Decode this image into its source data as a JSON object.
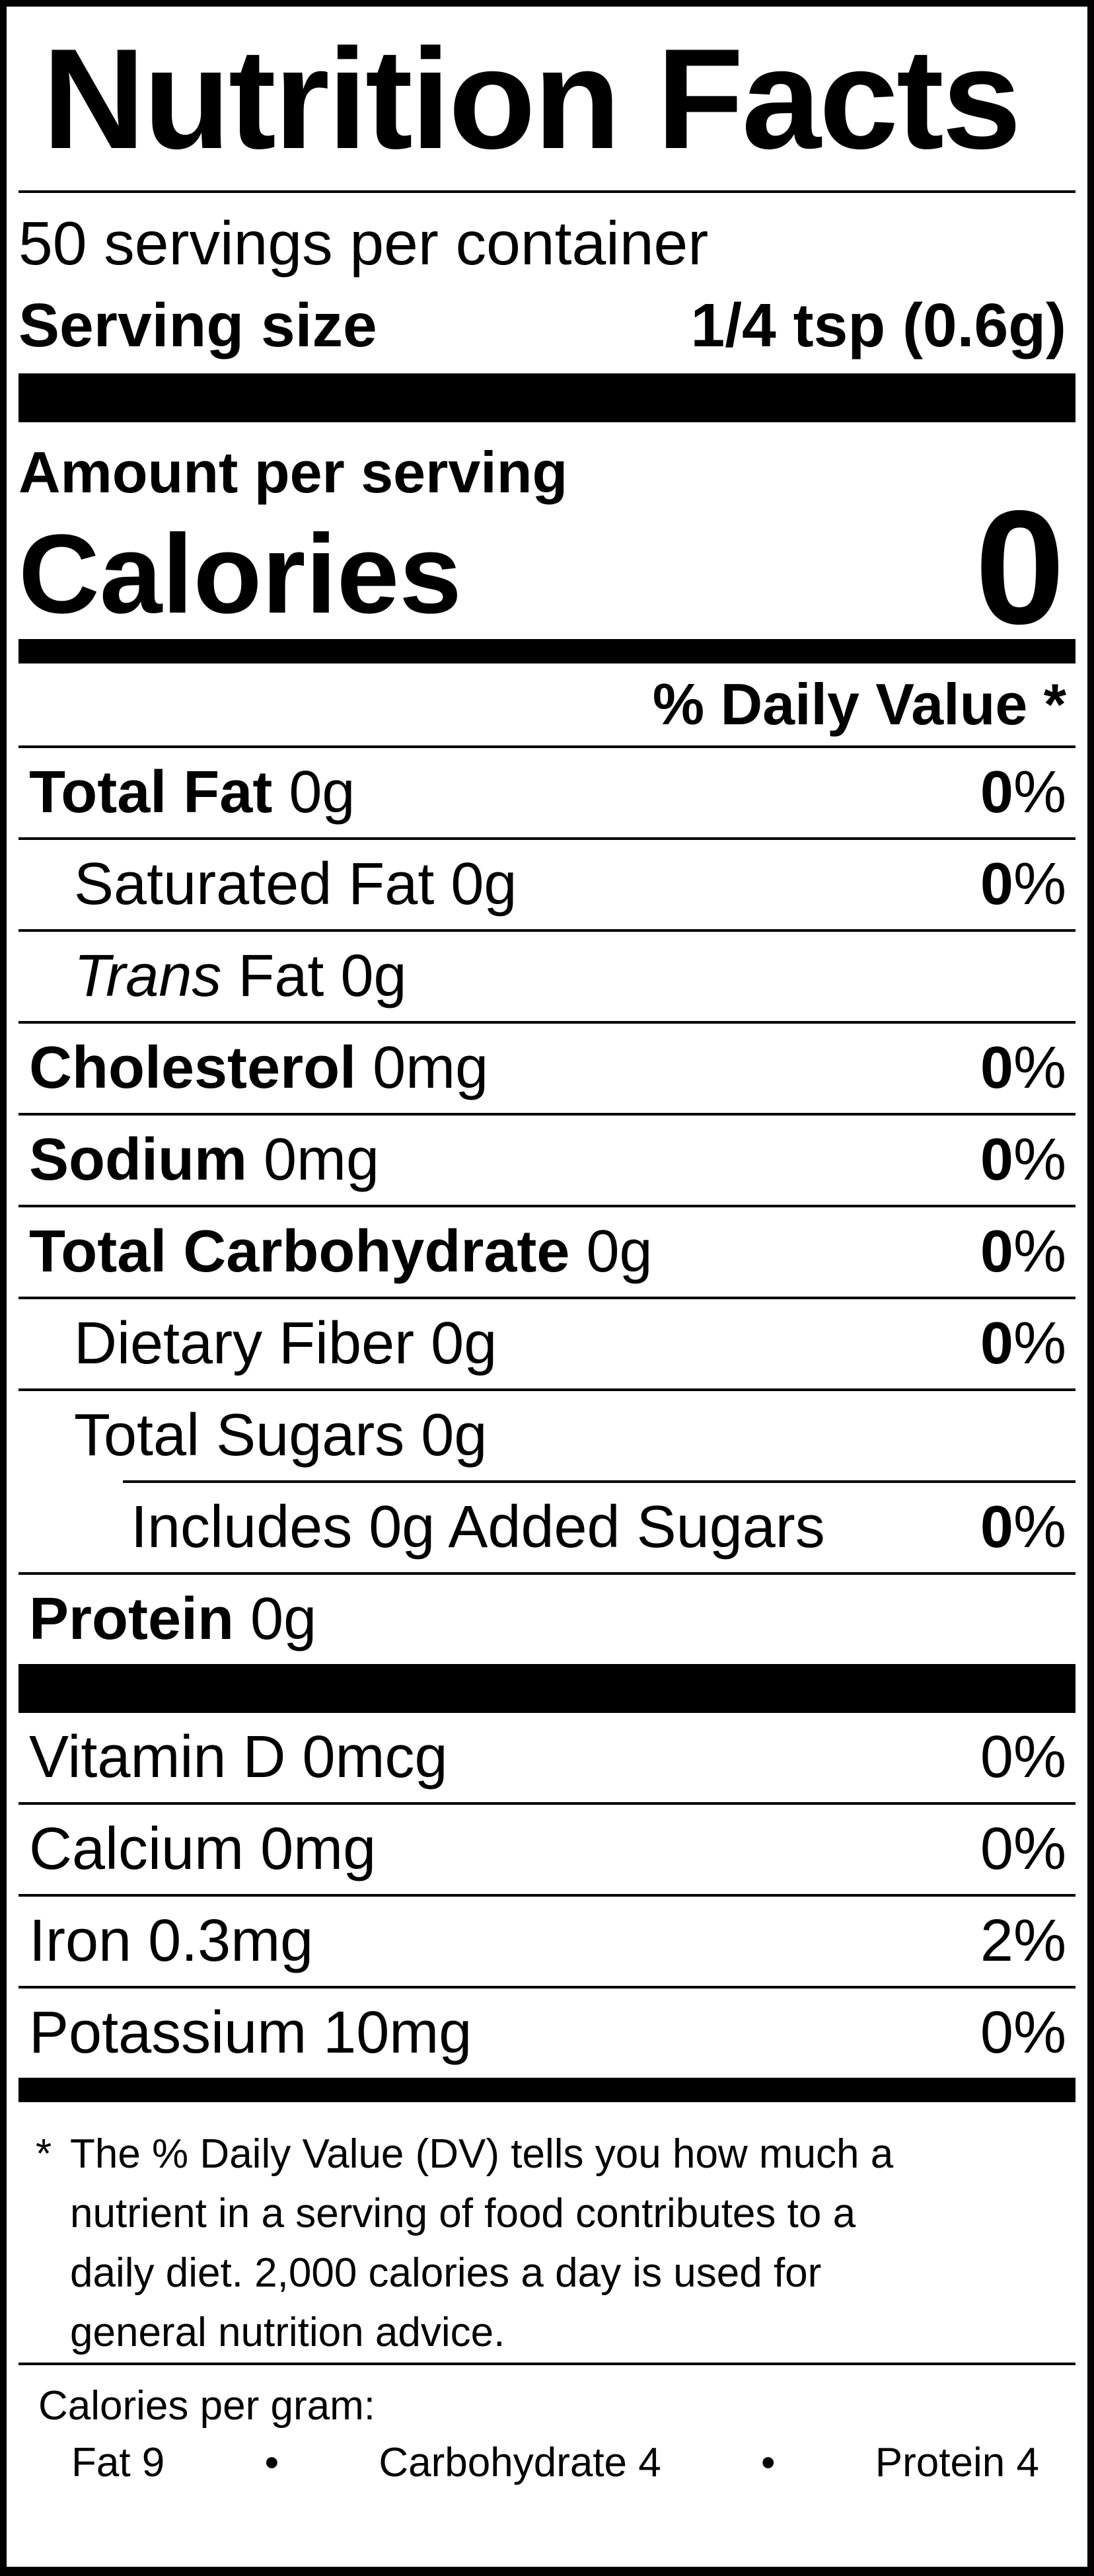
{
  "header": {
    "title": "Nutrition Facts",
    "servings_per_container": "50 servings per container",
    "serving_size_label": "Serving size",
    "serving_size_value": "1/4 tsp (0.6g)"
  },
  "calories_section": {
    "amount_per_serving": "Amount per serving",
    "calories_label": "Calories",
    "calories_value": "0"
  },
  "daily_value_header": "% Daily Value *",
  "percent_sign": "%",
  "nutrients": [
    {
      "name": "Total Fat",
      "amount": "0g",
      "dv": "0",
      "bold": true,
      "indent": 0,
      "rule": "none"
    },
    {
      "name": "Saturated Fat",
      "amount": "0g",
      "dv": "0",
      "bold": false,
      "indent": 1,
      "rule": "full"
    },
    {
      "name": "Fat",
      "italic_prefix": "Trans",
      "amount": "0g",
      "dv": null,
      "bold": false,
      "indent": 1,
      "rule": "full"
    },
    {
      "name": "Cholesterol",
      "amount": "0mg",
      "dv": "0",
      "bold": true,
      "indent": 0,
      "rule": "full"
    },
    {
      "name": "Sodium",
      "amount": "0mg",
      "dv": "0",
      "bold": true,
      "indent": 0,
      "rule": "full"
    },
    {
      "name": "Total Carbohydrate",
      "amount": "0g",
      "dv": "0",
      "bold": true,
      "indent": 0,
      "rule": "full"
    },
    {
      "name": "Dietary Fiber",
      "amount": "0g",
      "dv": "0",
      "bold": false,
      "indent": 1,
      "rule": "full"
    },
    {
      "name": "Total Sugars",
      "amount": "0g",
      "dv": null,
      "bold": false,
      "indent": 1,
      "rule": "full"
    },
    {
      "name": "Includes 0g Added Sugars",
      "amount": null,
      "dv": "0",
      "bold": false,
      "indent": 2,
      "rule": "indent"
    },
    {
      "name": "Protein",
      "amount": "0g",
      "dv": null,
      "bold": true,
      "indent": 0,
      "rule": "full"
    }
  ],
  "vitamins": [
    {
      "name": "Vitamin D",
      "amount": "0mcg",
      "dv": "0",
      "rule": "none"
    },
    {
      "name": "Calcium",
      "amount": "0mg",
      "dv": "0",
      "rule": "full"
    },
    {
      "name": "Iron",
      "amount": "0.3mg",
      "dv": "2",
      "rule": "full"
    },
    {
      "name": "Potassium",
      "amount": "10mg",
      "dv": "0",
      "rule": "full"
    }
  ],
  "footnote": {
    "marker": "*",
    "text": "The % Daily Value (DV) tells you how much a\nnutrient in a serving of food contributes to a\ndaily diet. 2,000 calories a day is used for\ngeneral nutrition advice."
  },
  "calories_per_gram": {
    "label": "Calories per gram:",
    "items": [
      "Fat 9",
      "Carbohydrate 4",
      "Protein 4"
    ],
    "separator": "•"
  }
}
